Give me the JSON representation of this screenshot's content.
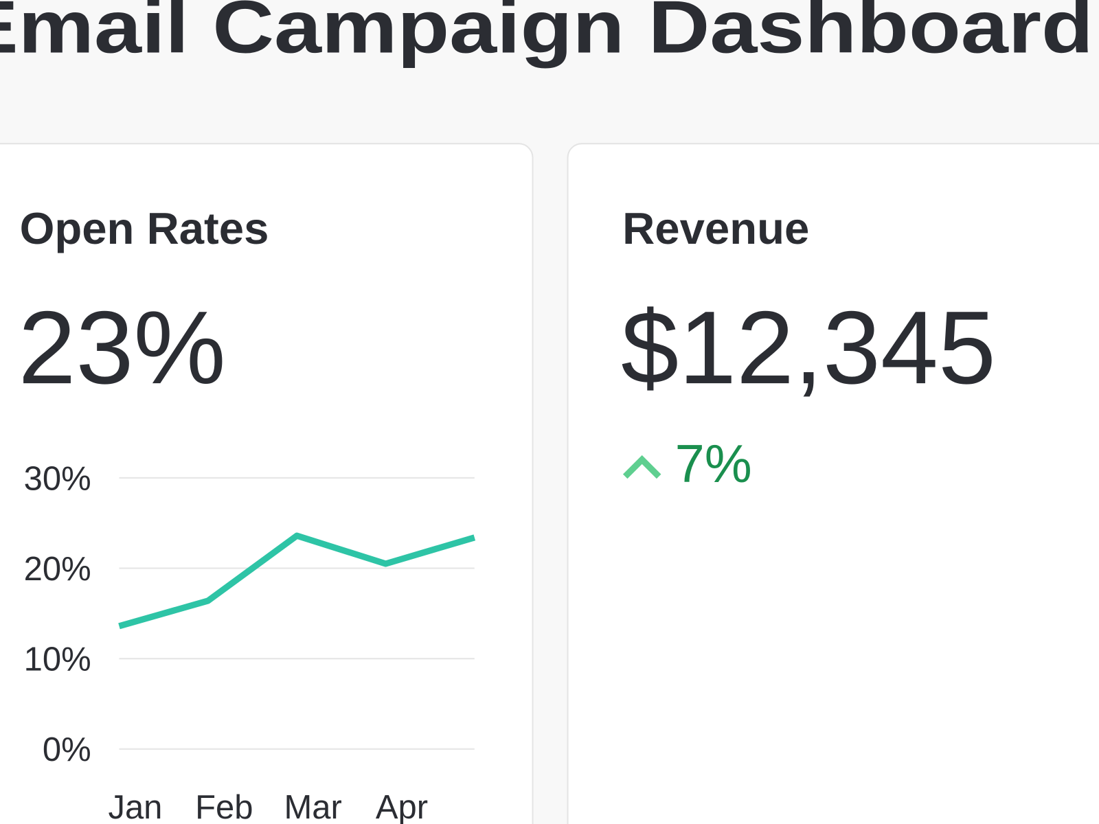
{
  "header": {
    "title": "Email Campaign Dashboard"
  },
  "open_rates": {
    "title": "Open Rates",
    "value": "23%",
    "chart": {
      "type": "line",
      "categories": [
        "Jan",
        "Feb",
        "Mar",
        "Apr",
        null
      ],
      "values": [
        13.6,
        16.4,
        23.6,
        20.5,
        23.4
      ],
      "color": "#2ec4a6",
      "ylim": [
        0,
        30
      ],
      "yticks": [
        {
          "value": 0,
          "label": "0%"
        },
        {
          "value": 10,
          "label": "10%"
        },
        {
          "value": 20,
          "label": "20%"
        },
        {
          "value": 30,
          "label": "30%"
        }
      ],
      "grid": true
    }
  },
  "revenue": {
    "title": "Revenue",
    "value": "$12,345",
    "change": "7%"
  }
}
